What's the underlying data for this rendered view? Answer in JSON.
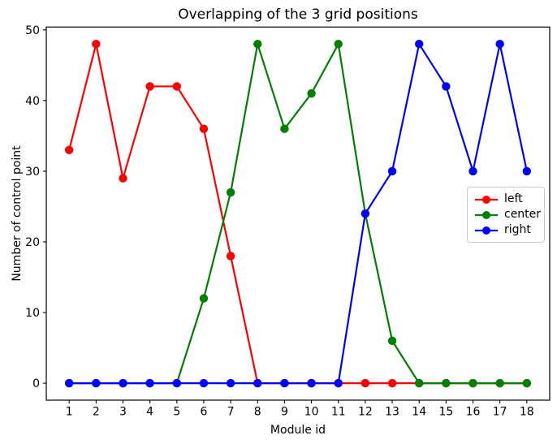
{
  "chart_data": {
    "type": "line",
    "title": "Overlapping of the 3 grid positions",
    "xlabel": "Module id",
    "ylabel": "Number of control point",
    "categories": [
      1,
      2,
      3,
      4,
      5,
      6,
      7,
      8,
      9,
      10,
      11,
      12,
      13,
      14,
      15,
      16,
      17,
      18
    ],
    "series": [
      {
        "name": "left",
        "color": "#ff0000",
        "values": [
          33,
          48,
          29,
          42,
          42,
          36,
          18,
          0,
          0,
          0,
          0,
          0,
          0,
          0,
          0,
          0,
          0,
          0
        ]
      },
      {
        "name": "center",
        "color": "#008000",
        "values": [
          0,
          0,
          0,
          0,
          0,
          12,
          27,
          48,
          36,
          41,
          48,
          24,
          6,
          0,
          0,
          0,
          0,
          0
        ]
      },
      {
        "name": "right",
        "color": "#0000ff",
        "values": [
          0,
          0,
          0,
          0,
          0,
          0,
          0,
          0,
          0,
          0,
          0,
          24,
          30,
          48,
          42,
          30,
          48,
          30
        ]
      }
    ],
    "y_ticks": [
      0,
      10,
      20,
      30,
      40,
      50
    ],
    "xlim": [
      0.15,
      18.85
    ],
    "ylim": [
      -2.4,
      50.4
    ],
    "grid": false,
    "marker": "circle",
    "legend": {
      "position": "center-right",
      "entries": [
        "left",
        "center",
        "right"
      ]
    },
    "frame_color": "#000000",
    "background_color": "#ffffff"
  }
}
